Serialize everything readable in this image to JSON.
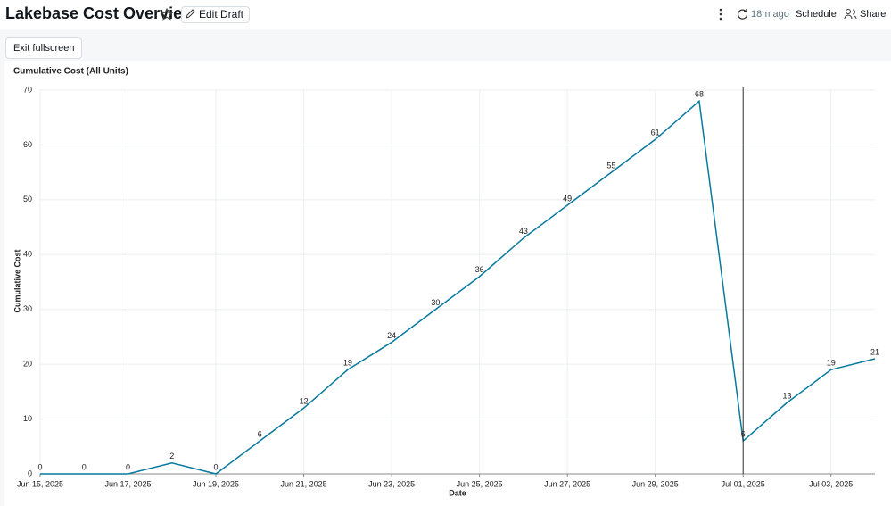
{
  "header": {
    "title": "Lakebase Cost Overview",
    "edit_button": "Edit Draft",
    "last_updated": "18m ago",
    "schedule": "Schedule",
    "share": "Share"
  },
  "toolbar": {
    "exit_fullscreen": "Exit fullscreen"
  },
  "chart_data": {
    "type": "line",
    "title": "Cumulative Cost (All Units)",
    "x_label": "Date",
    "y_label": "Cumulative Cost",
    "x": [
      "2025-06-15",
      "2025-06-16",
      "2025-06-17",
      "2025-06-18",
      "2025-06-19",
      "2025-06-20",
      "2025-06-21",
      "2025-06-22",
      "2025-06-23",
      "2025-06-24",
      "2025-06-25",
      "2025-06-26",
      "2025-06-27",
      "2025-06-28",
      "2025-06-29",
      "2025-06-30",
      "2025-07-01",
      "2025-07-02",
      "2025-07-03",
      "2025-07-04"
    ],
    "values": [
      0,
      0,
      0,
      2,
      0,
      6,
      12,
      19,
      24,
      30,
      36,
      43,
      49,
      55,
      61,
      68,
      6,
      13,
      19,
      21
    ],
    "color": "#077a9d",
    "xlim": [
      "2025-06-15",
      "2025-07-04"
    ],
    "xticks": [
      {
        "value": "2025-06-15",
        "label": "Jun 15, 2025"
      },
      {
        "value": "2025-06-17",
        "label": "Jun 17, 2025"
      },
      {
        "value": "2025-06-19",
        "label": "Jun 19, 2025"
      },
      {
        "value": "2025-06-21",
        "label": "Jun 21, 2025"
      },
      {
        "value": "2025-06-23",
        "label": "Jun 23, 2025"
      },
      {
        "value": "2025-06-25",
        "label": "Jun 25, 2025"
      },
      {
        "value": "2025-06-27",
        "label": "Jun 27, 2025"
      },
      {
        "value": "2025-06-29",
        "label": "Jun 29, 2025"
      },
      {
        "value": "2025-07-01",
        "label": "Jul 01, 2025"
      },
      {
        "value": "2025-07-03",
        "label": "Jul 03, 2025"
      }
    ],
    "ylim": [
      0,
      70
    ],
    "yticks": [
      0,
      10,
      20,
      30,
      40,
      50,
      60,
      70
    ],
    "grid": true
  }
}
